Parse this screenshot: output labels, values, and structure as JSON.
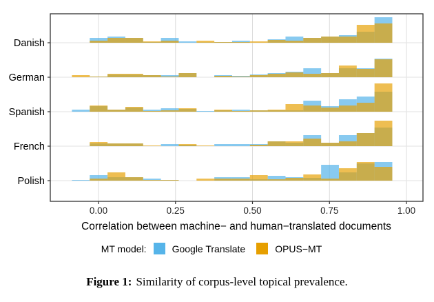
{
  "chart_data": {
    "type": "histogram",
    "title": "",
    "xlabel": "Correlation between machine− and human−translated documents",
    "ylabel": "",
    "xlim": [
      -0.16,
      1.05
    ],
    "x_ticks": [
      0.0,
      0.25,
      0.5,
      0.75,
      1.0
    ],
    "x_tick_labels": [
      "0.00",
      "0.25",
      "0.50",
      "0.75",
      "1.00"
    ],
    "grid": true,
    "bin_start": -0.0863,
    "bin_width": 0.0578,
    "categories": [
      "Danish",
      "German",
      "Spanish",
      "French",
      "Polish"
    ],
    "series": [
      {
        "name": "Google Translate",
        "color": "#56B4E9",
        "rows": {
          "Danish": [
            0,
            0.7,
            0.9,
            0.7,
            0.1,
            0.7,
            0.2,
            0.05,
            0.1,
            0.3,
            0,
            0.5,
            0.9,
            0.7,
            0.9,
            1.1,
            1.6,
            3.7
          ],
          "German": [
            0,
            0.1,
            0.4,
            0.4,
            0.3,
            0.3,
            0.6,
            0,
            0.3,
            0.2,
            0.4,
            0.6,
            0.8,
            1.3,
            0.6,
            1.3,
            1.3,
            2.7
          ],
          "Spanish": [
            0.3,
            0.8,
            0.3,
            0.6,
            0.3,
            0.5,
            0.4,
            0.1,
            0.2,
            0.3,
            0.2,
            0.2,
            0.2,
            1.6,
            0.8,
            1.8,
            2.2,
            2.9
          ],
          "French": [
            0,
            0.4,
            0.4,
            0.4,
            0,
            0.3,
            0.2,
            0,
            0.3,
            0.3,
            0.3,
            0.7,
            0.5,
            1.6,
            0.5,
            1.6,
            1.9,
            2.7
          ],
          "Polish": [
            0.1,
            0.8,
            0.5,
            0.5,
            0.3,
            0.1,
            0,
            0,
            0.5,
            0.5,
            0.2,
            0.7,
            0.5,
            0.4,
            2.3,
            1.2,
            2.5,
            2.7
          ]
        }
      },
      {
        "name": "OPUS-MT",
        "color": "#E69F00",
        "rows": {
          "Danish": [
            0,
            0.3,
            0.7,
            0.7,
            0.2,
            0.3,
            0,
            0.3,
            0.1,
            0.1,
            0.2,
            0.4,
            0.3,
            0.7,
            0.9,
            0.9,
            2.6,
            2.8
          ],
          "German": [
            0.3,
            0.1,
            0.5,
            0.5,
            0.3,
            0.1,
            0.6,
            0,
            0.2,
            0.1,
            0.3,
            0.5,
            0.7,
            0.5,
            0.6,
            1.7,
            1.2,
            2.6
          ],
          "Spanish": [
            0,
            0.9,
            0.3,
            0.7,
            0.1,
            0.2,
            0.5,
            0,
            0.3,
            0.1,
            0.2,
            0.3,
            1.1,
            0.9,
            0.6,
            0.9,
            1.3,
            4.1
          ],
          "French": [
            0,
            0.6,
            0.4,
            0.4,
            0.1,
            0,
            0.3,
            0.1,
            0,
            0,
            0.2,
            0.7,
            0.7,
            1.1,
            0.5,
            0.7,
            1.9,
            3.7
          ],
          "Polish": [
            0,
            0.3,
            1.2,
            0.5,
            0.1,
            0.1,
            0,
            0.3,
            0.3,
            0.3,
            0.8,
            0.2,
            0.4,
            0.9,
            0.3,
            1.8,
            2.7,
            2.0
          ]
        }
      }
    ],
    "legend": {
      "title": "MT model:",
      "position": "bottom",
      "entries": [
        "Google Translate",
        "OPUS−MT"
      ]
    }
  },
  "caption": {
    "label": "Figure 1:",
    "text": "Similarity of corpus-level topical prevalence."
  }
}
